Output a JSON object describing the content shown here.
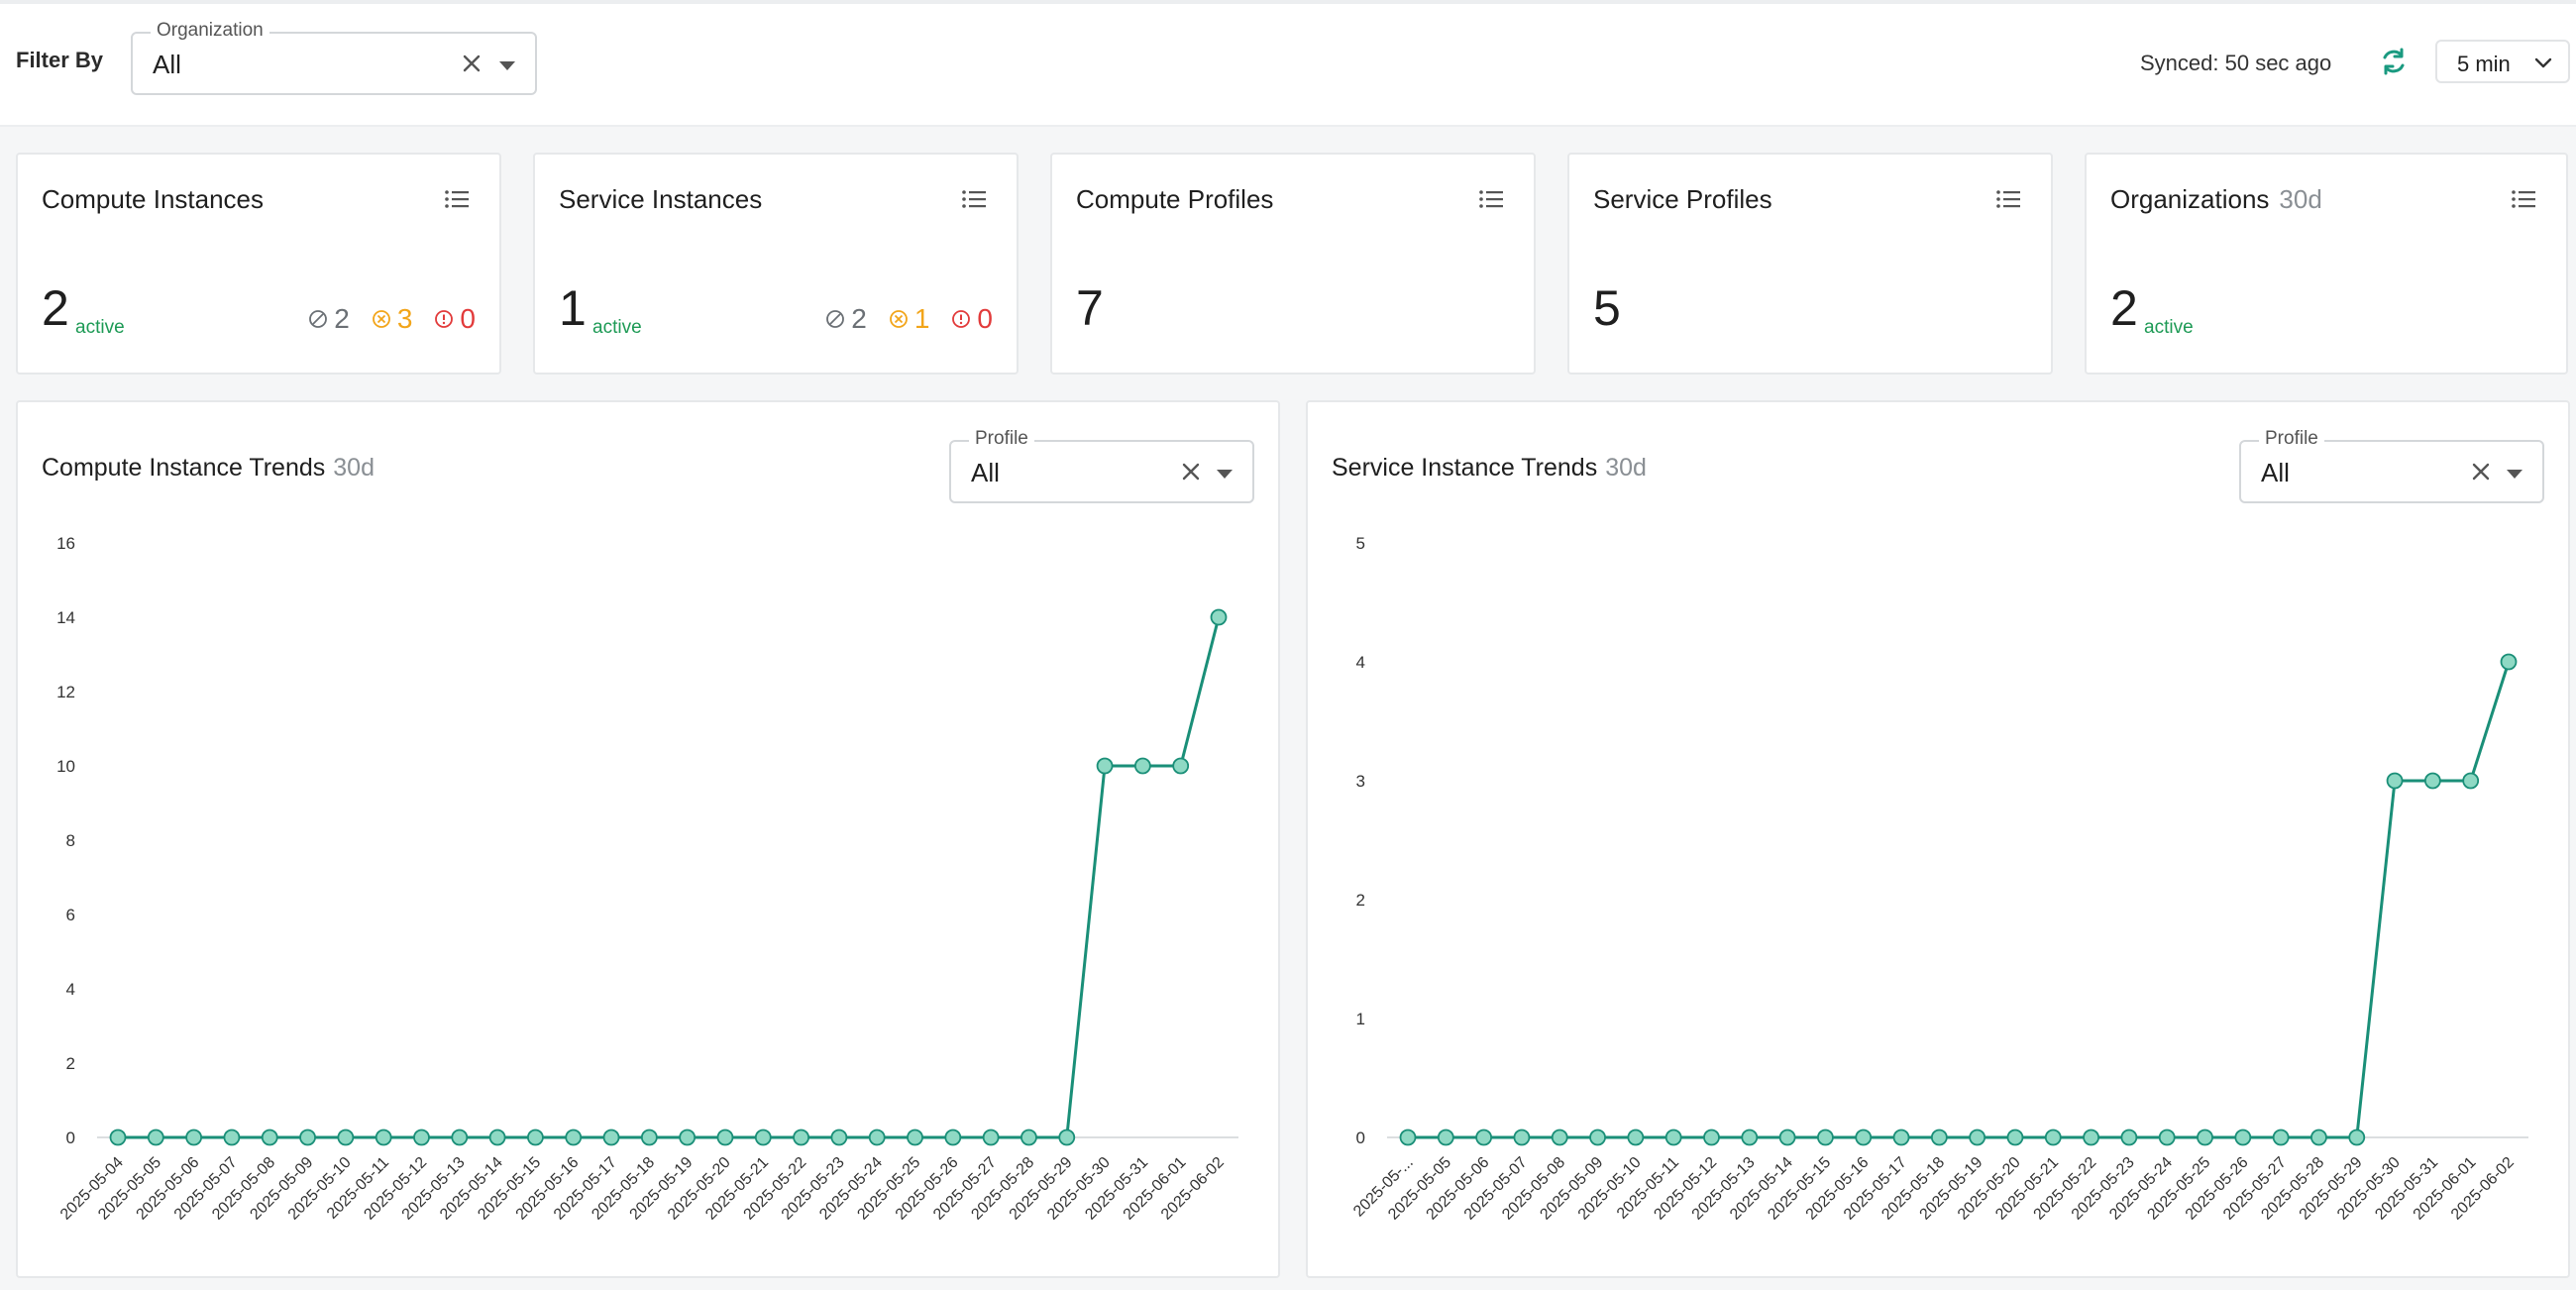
{
  "header": {
    "filter_label": "Filter By",
    "org_filter": {
      "label": "Organization",
      "value": "All"
    },
    "synced_text": "Synced: 50 sec ago",
    "interval": "5 min"
  },
  "cards": [
    {
      "title": "Compute Instances",
      "value": "2",
      "active_label": "active",
      "stats": {
        "grey": "2",
        "orange": "3",
        "red": "0"
      }
    },
    {
      "title": "Service Instances",
      "value": "1",
      "active_label": "active",
      "stats": {
        "grey": "2",
        "orange": "1",
        "red": "0"
      }
    },
    {
      "title": "Compute Profiles",
      "value": "7"
    },
    {
      "title": "Service Profiles",
      "value": "5"
    },
    {
      "title": "Organizations",
      "subtitle": "30d",
      "value": "2",
      "active_label": "active"
    }
  ],
  "panels": [
    {
      "title": "Compute Instance Trends",
      "subtitle": "30d",
      "profile_filter": {
        "label": "Profile",
        "value": "All"
      }
    },
    {
      "title": "Service Instance Trends",
      "subtitle": "30d",
      "profile_filter": {
        "label": "Profile",
        "value": "All"
      }
    }
  ],
  "colors": {
    "line": "#1a8f78",
    "point_fill": "#8fd9c4",
    "active": "#1d9a55",
    "warn": "#f2a51a",
    "error": "#e23b3b",
    "refresh": "#1a9a80"
  },
  "chart_data": [
    {
      "type": "line",
      "title": "Compute Instance Trends",
      "yticks": [
        0,
        2,
        4,
        6,
        8,
        10,
        12,
        14,
        16
      ],
      "ylim": [
        0,
        16
      ],
      "x": [
        "2025-05-04",
        "2025-05-05",
        "2025-05-06",
        "2025-05-07",
        "2025-05-08",
        "2025-05-09",
        "2025-05-10",
        "2025-05-11",
        "2025-05-12",
        "2025-05-13",
        "2025-05-14",
        "2025-05-15",
        "2025-05-16",
        "2025-05-17",
        "2025-05-18",
        "2025-05-19",
        "2025-05-20",
        "2025-05-21",
        "2025-05-22",
        "2025-05-23",
        "2025-05-24",
        "2025-05-25",
        "2025-05-26",
        "2025-05-27",
        "2025-05-28",
        "2025-05-29",
        "2025-05-30",
        "2025-05-31",
        "2025-06-01",
        "2025-06-02"
      ],
      "x_tick_labels": [
        "2025-05-04",
        "2025-05-05",
        "2025-05-06",
        "2025-05-07",
        "2025-05-08",
        "2025-05-09",
        "2025-05-10",
        "2025-05-11",
        "2025-05-12",
        "2025-05-13",
        "2025-05-14",
        "2025-05-15",
        "2025-05-16",
        "2025-05-17",
        "2025-05-18",
        "2025-05-19",
        "2025-05-20",
        "2025-05-21",
        "2025-05-22",
        "2025-05-23",
        "2025-05-24",
        "2025-05-25",
        "2025-05-26",
        "2025-05-27",
        "2025-05-28",
        "2025-05-29",
        "2025-05-30",
        "2025-05-31",
        "2025-06-01",
        "2025-06-02"
      ],
      "values": [
        0,
        0,
        0,
        0,
        0,
        0,
        0,
        0,
        0,
        0,
        0,
        0,
        0,
        0,
        0,
        0,
        0,
        0,
        0,
        0,
        0,
        0,
        0,
        0,
        0,
        0,
        10,
        10,
        10,
        14
      ],
      "grid": false
    },
    {
      "type": "line",
      "title": "Service Instance Trends",
      "yticks": [
        0,
        1,
        2,
        3,
        4,
        5
      ],
      "ylim": [
        0,
        5
      ],
      "x": [
        "2025-05-04",
        "2025-05-05",
        "2025-05-06",
        "2025-05-07",
        "2025-05-08",
        "2025-05-09",
        "2025-05-10",
        "2025-05-11",
        "2025-05-12",
        "2025-05-13",
        "2025-05-14",
        "2025-05-15",
        "2025-05-16",
        "2025-05-17",
        "2025-05-18",
        "2025-05-19",
        "2025-05-20",
        "2025-05-21",
        "2025-05-22",
        "2025-05-23",
        "2025-05-24",
        "2025-05-25",
        "2025-05-26",
        "2025-05-27",
        "2025-05-28",
        "2025-05-29",
        "2025-05-30",
        "2025-05-31",
        "2025-06-01",
        "2025-06-02"
      ],
      "x_tick_labels": [
        "2025-05-...",
        "2025-05-05",
        "2025-05-06",
        "2025-05-07",
        "2025-05-08",
        "2025-05-09",
        "2025-05-10",
        "2025-05-11",
        "2025-05-12",
        "2025-05-13",
        "2025-05-14",
        "2025-05-15",
        "2025-05-16",
        "2025-05-17",
        "2025-05-18",
        "2025-05-19",
        "2025-05-20",
        "2025-05-21",
        "2025-05-22",
        "2025-05-23",
        "2025-05-24",
        "2025-05-25",
        "2025-05-26",
        "2025-05-27",
        "2025-05-28",
        "2025-05-29",
        "2025-05-30",
        "2025-05-31",
        "2025-06-01",
        "2025-06-02"
      ],
      "values": [
        0,
        0,
        0,
        0,
        0,
        0,
        0,
        0,
        0,
        0,
        0,
        0,
        0,
        0,
        0,
        0,
        0,
        0,
        0,
        0,
        0,
        0,
        0,
        0,
        0,
        0,
        3,
        3,
        3,
        4
      ],
      "grid": false
    }
  ]
}
